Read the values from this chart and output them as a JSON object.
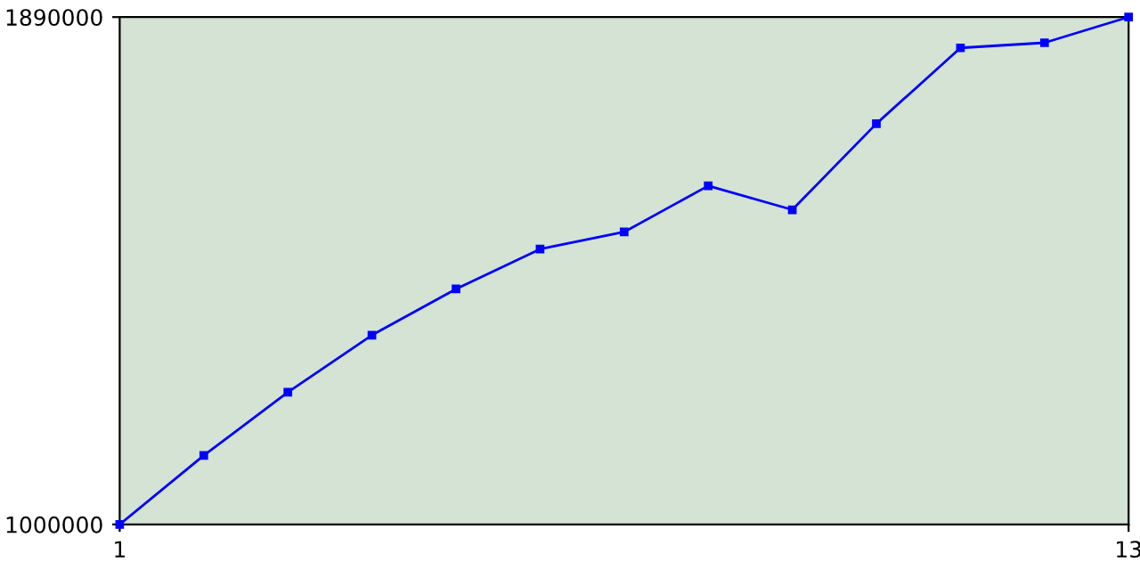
{
  "chart_data": {
    "type": "line",
    "x": [
      1,
      2,
      3,
      4,
      5,
      6,
      7,
      8,
      9,
      10,
      11,
      12,
      13
    ],
    "series": [
      {
        "color": "#0000ff",
        "values": [
          1000000,
          1121000,
          1232000,
          1332000,
          1413000,
          1483000,
          1513000,
          1594000,
          1552000,
          1703000,
          1836000,
          1845000,
          1890000
        ]
      }
    ],
    "xlim": [
      1,
      13
    ],
    "xticks": [
      1,
      13
    ],
    "ylim": [
      1000000,
      1890000
    ],
    "yticks": [
      1000000,
      1890000
    ],
    "grid": false,
    "marker": "square",
    "line_style": "solid"
  }
}
